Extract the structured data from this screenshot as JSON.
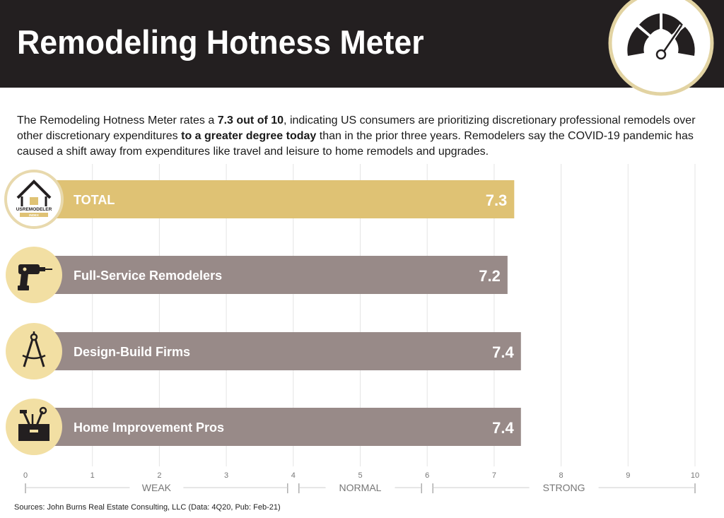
{
  "header": {
    "title": "Remodeling Hotness Meter",
    "badge_icon": "speedometer-gauge-icon"
  },
  "intro": {
    "part1": "The Remodeling Hotness Meter rates a ",
    "bold1": "7.3 out of 10",
    "part2": ", indicating US consumers are prioritizing discretionary professional remodels over other discretionary expenditures ",
    "bold2": "to a greater degree today",
    "part3": " than in the prior three years. Remodelers say the COVID-19 pandemic has caused a shift away from expenditures like travel and leisure to home remodels and upgrades."
  },
  "colors": {
    "header_bg": "#231f20",
    "total_bar": "#dfc274",
    "segment_bar": "#988a88",
    "icon_circle": "#f2dfa3",
    "icon_ring": "#e8d9ad",
    "grid": "#e4e4e4",
    "axis": "#999999"
  },
  "chart_data": {
    "type": "bar",
    "orientation": "horizontal",
    "categories": [
      "TOTAL",
      "Full-Service Remodelers",
      "Design-Build Firms",
      "Home Improvement Pros"
    ],
    "values": [
      7.3,
      7.2,
      7.4,
      7.4
    ],
    "value_labels": [
      "7.3",
      "7.2",
      "7.4",
      "7.4"
    ],
    "icons": [
      "us-remodeler-index-logo-icon",
      "power-drill-icon",
      "drafting-compass-icon",
      "toolbox-icon"
    ],
    "logo_text": "USREMODELER",
    "logo_subtext": "INDEX",
    "xlim": [
      0,
      10
    ],
    "xticks": [
      0,
      1,
      2,
      3,
      4,
      5,
      6,
      7,
      8,
      9,
      10
    ],
    "ranges": [
      {
        "label": "WEAK",
        "from": 0,
        "to": 4
      },
      {
        "label": "NORMAL",
        "from": 4,
        "to": 6
      },
      {
        "label": "STRONG",
        "from": 6,
        "to": 10
      }
    ],
    "grid": true
  },
  "footer": {
    "source": "Sources: John Burns Real Estate Consulting, LLC (Data: 4Q20, Pub: Feb-21)"
  }
}
